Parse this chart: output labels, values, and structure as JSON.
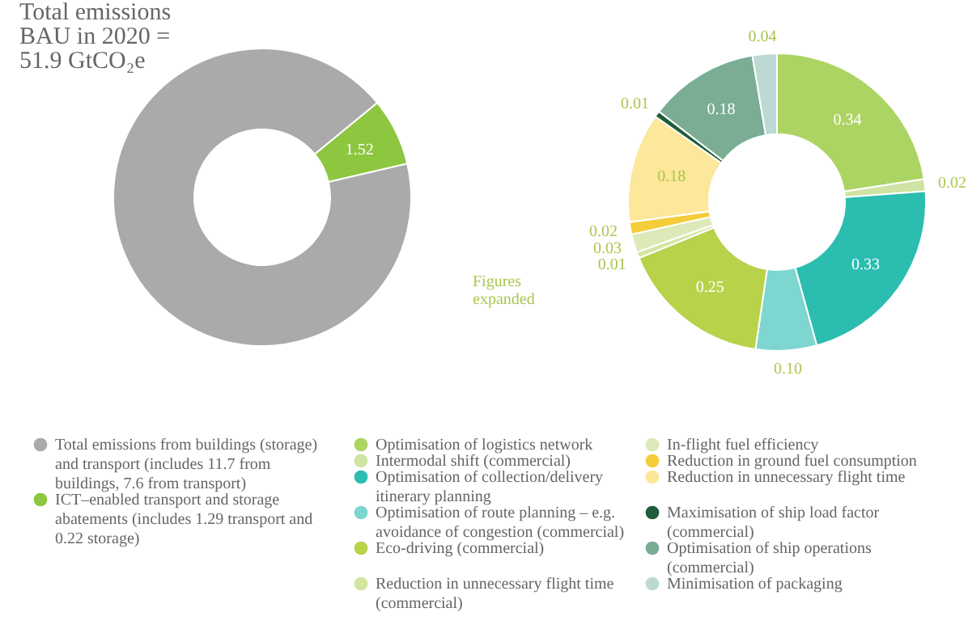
{
  "chart_data": [
    {
      "type": "donut",
      "title": "Total emissions BAU in 2020 = 51.9 GtCO₂e",
      "categories": [
        "Total emissions from buildings (storage) and transport (includes 11.7 from buildings, 7.6 from transport)",
        "ICT–enabled transport and storage abatements (includes 1.29 transport and 0.22 storage)"
      ],
      "values": [
        19.3,
        1.52
      ],
      "colors": [
        "#aaaaaa",
        "#8dc63f"
      ],
      "value_labels": [
        null,
        "1.52"
      ],
      "legend": "bottom left"
    },
    {
      "type": "donut",
      "annotations": [
        "Figures expanded"
      ],
      "categories": [
        "Optimisation of logistics network",
        "Intermodal shift (commercial)",
        "Optimisation of collection/delivery itinerary planning",
        "Optimisation of route planning – e.g. avoidance of congestion (commercial)",
        "Eco-driving (commercial)",
        "Reduction in unnecessary flight time (commercial)",
        "In-flight fuel efficiency",
        "Reduction in ground fuel consumption",
        "Reduction in unnecessary flight time",
        "Maximisation of ship load factor (commercial)",
        "Optimisation of ship operations (commercial)",
        "Minimisation of packaging"
      ],
      "values": [
        0.34,
        0.02,
        0.33,
        0.1,
        0.25,
        0.01,
        0.03,
        0.02,
        0.18,
        0.01,
        0.18,
        0.04
      ],
      "colors": [
        "#acd462",
        "#cfe3a3",
        "#2bbdb0",
        "#7dd6cf",
        "#b8d24a",
        "#d3e6a0",
        "#dde9b8",
        "#f5cc3a",
        "#fde79a",
        "#1f5c3a",
        "#7aad94",
        "#bcd9d3"
      ],
      "value_labels": [
        "0.34",
        "0.02",
        "0.33",
        "0.10",
        "0.25",
        "0.01",
        "0.03",
        "0.02",
        "0.18",
        "0.01",
        "0.18",
        "0.04"
      ],
      "legend": "bottom"
    }
  ]
}
